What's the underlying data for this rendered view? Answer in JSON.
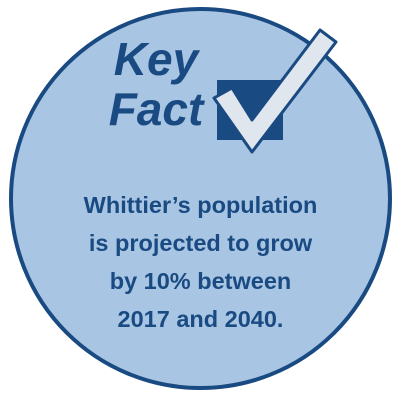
{
  "heading": {
    "line1": "Key",
    "line2": "Fact"
  },
  "fact": {
    "line1": "Whittier’s population",
    "line2": "is projected to grow",
    "line3": "by 10% between",
    "line4": "2017 and 2040."
  },
  "icon": "checkbox-checkmark-icon",
  "colors": {
    "circle_fill": "#a8c5e3",
    "accent": "#1a4a82",
    "check_fill": "#dfe6ee"
  }
}
